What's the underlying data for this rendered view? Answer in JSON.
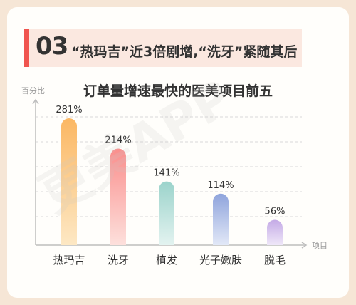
{
  "header": {
    "section_number": "03",
    "section_title": "“热玛吉”近3倍剧增,“洗牙”紧随其后"
  },
  "chart_data": {
    "type": "bar",
    "title": "订单量增速最快的医美项目前五",
    "ylabel": "百分比",
    "xlabel": "项目",
    "categories": [
      "热玛吉",
      "洗牙",
      "植发",
      "光子嫩肤",
      "脱毛"
    ],
    "values": [
      281,
      214,
      141,
      114,
      56
    ],
    "value_labels": [
      "281%",
      "214%",
      "141%",
      "114%",
      "56%"
    ],
    "ylim": [
      0,
      300
    ],
    "grid": true,
    "bar_colors": [
      [
        "#fbb763",
        "#fde8c4"
      ],
      [
        "#fa8e8c",
        "#fde0dc"
      ],
      [
        "#9bd3cb",
        "#e3f3f0"
      ],
      [
        "#8fa4dc",
        "#e2e8f7"
      ],
      [
        "#c4aae6",
        "#efe7f8"
      ]
    ]
  },
  "watermark": "更美APP"
}
